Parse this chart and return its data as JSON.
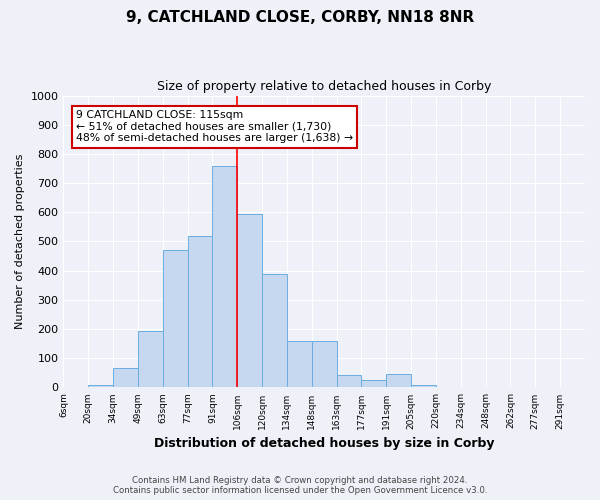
{
  "title": "9, CATCHLAND CLOSE, CORBY, NN18 8NR",
  "subtitle": "Size of property relative to detached houses in Corby",
  "xlabel": "Distribution of detached houses by size in Corby",
  "ylabel": "Number of detached properties",
  "bar_labels": [
    "6sqm",
    "20sqm",
    "34sqm",
    "49sqm",
    "63sqm",
    "77sqm",
    "91sqm",
    "106sqm",
    "120sqm",
    "134sqm",
    "148sqm",
    "163sqm",
    "177sqm",
    "191sqm",
    "205sqm",
    "220sqm",
    "234sqm",
    "248sqm",
    "262sqm",
    "277sqm",
    "291sqm"
  ],
  "bar_values": [
    0,
    10,
    65,
    195,
    470,
    518,
    760,
    595,
    388,
    158,
    158,
    42,
    25,
    45,
    8,
    3,
    0,
    0,
    0,
    0,
    0
  ],
  "bar_color": "#c5d8f0",
  "bar_edge_color": "#6aaee0",
  "property_line_x": 7,
  "property_line_label": "9 CATCHLAND CLOSE: 115sqm",
  "annotation_line1": "← 51% of detached houses are smaller (1,730)",
  "annotation_line2": "48% of semi-detached houses are larger (1,638) →",
  "annotation_box_color": "#ffffff",
  "annotation_box_edge": "#cc0000",
  "ylim": [
    0,
    1000
  ],
  "yticks": [
    0,
    100,
    200,
    300,
    400,
    500,
    600,
    700,
    800,
    900,
    1000
  ],
  "bg_color": "#eef2f8",
  "grid_color": "#ffffff",
  "footer_line1": "Contains HM Land Registry data © Crown copyright and database right 2024.",
  "footer_line2": "Contains public sector information licensed under the Open Government Licence v3.0."
}
